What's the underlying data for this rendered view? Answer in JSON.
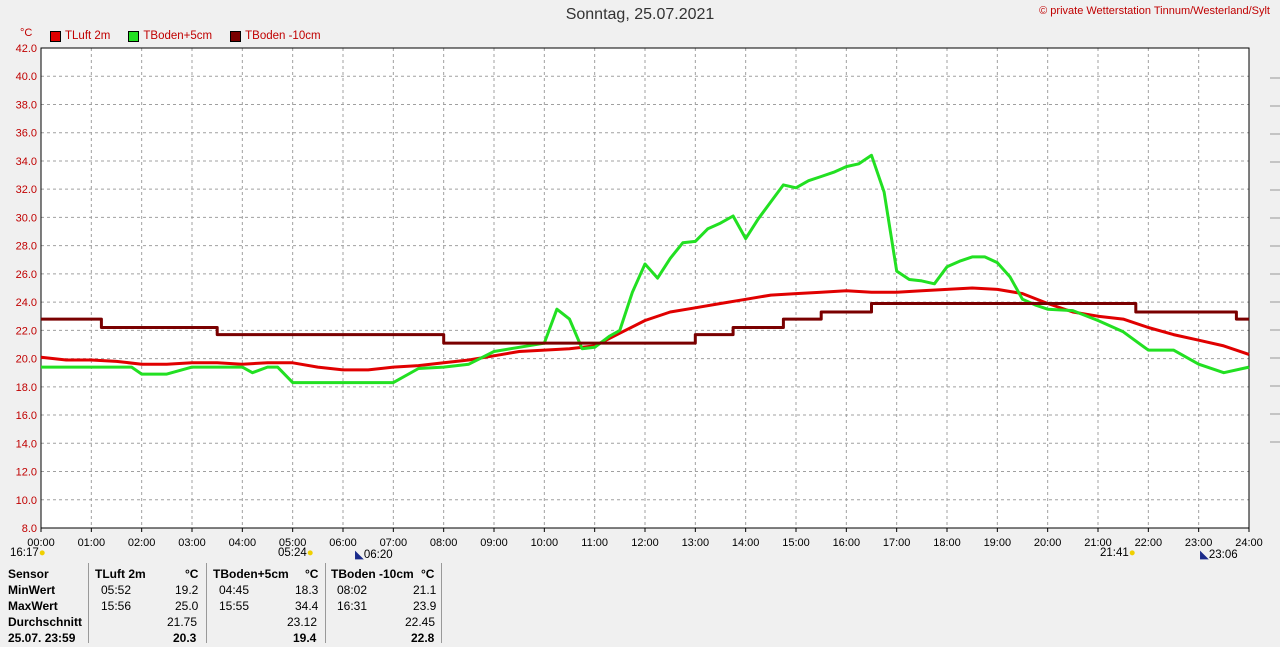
{
  "title": "Sonntag, 25.07.2021",
  "copyright": "© private Wetterstation Tinnum/Westerland/Sylt",
  "unit": "°C",
  "sun_events": [
    "16:17",
    "05:24",
    "06:20",
    "21:41",
    "23:06"
  ],
  "chart_data": {
    "type": "line",
    "ylim": [
      8,
      42
    ],
    "yticks": [
      "8.0",
      "10.0",
      "12.0",
      "14.0",
      "16.0",
      "18.0",
      "20.0",
      "22.0",
      "24.0",
      "26.0",
      "28.0",
      "30.0",
      "32.0",
      "34.0",
      "36.0",
      "38.0",
      "40.0",
      "42.0"
    ],
    "xticks": [
      "00:00",
      "01:00",
      "02:00",
      "03:00",
      "04:00",
      "05:00",
      "06:00",
      "07:00",
      "08:00",
      "09:00",
      "10:00",
      "11:00",
      "12:00",
      "13:00",
      "14:00",
      "15:00",
      "16:00",
      "17:00",
      "18:00",
      "19:00",
      "20:00",
      "21:00",
      "22:00",
      "23:00",
      "24:00"
    ],
    "xlim_hours": [
      0,
      24
    ],
    "grid": true,
    "series": [
      {
        "name": "TLuft 2m",
        "color": "#e00000",
        "x": [
          0,
          0.5,
          1,
          1.5,
          2,
          2.5,
          3,
          3.5,
          4,
          4.5,
          5,
          5.5,
          6,
          6.5,
          7,
          7.5,
          8,
          8.5,
          9,
          9.5,
          10,
          10.5,
          11,
          11.5,
          12,
          12.5,
          13,
          13.5,
          14,
          14.5,
          15,
          15.5,
          16,
          16.5,
          17,
          17.5,
          18,
          18.5,
          19,
          19.5,
          20,
          20.5,
          21,
          21.5,
          22,
          22.5,
          23,
          23.5,
          24
        ],
        "y": [
          20.1,
          19.9,
          19.9,
          19.8,
          19.6,
          19.6,
          19.7,
          19.7,
          19.6,
          19.7,
          19.7,
          19.4,
          19.2,
          19.2,
          19.4,
          19.5,
          19.7,
          19.9,
          20.2,
          20.5,
          20.6,
          20.7,
          20.9,
          21.8,
          22.7,
          23.3,
          23.6,
          23.9,
          24.2,
          24.5,
          24.6,
          24.7,
          24.8,
          24.7,
          24.7,
          24.8,
          24.9,
          25.0,
          24.9,
          24.6,
          23.9,
          23.3,
          23.0,
          22.8,
          22.2,
          21.7,
          21.3,
          20.9,
          20.3
        ]
      },
      {
        "name": "TBoden+5cm",
        "color": "#22e022",
        "x": [
          0,
          0.5,
          1,
          1.5,
          1.8,
          2,
          2.5,
          3,
          3.5,
          4,
          4.2,
          4.5,
          4.7,
          5,
          5.5,
          6,
          6.5,
          7,
          7.5,
          8,
          8.5,
          9,
          9.5,
          10,
          10.25,
          10.5,
          10.75,
          11,
          11.3,
          11.5,
          11.75,
          12,
          12.25,
          12.5,
          12.75,
          13,
          13.25,
          13.5,
          13.75,
          14,
          14.25,
          14.5,
          14.75,
          15,
          15.25,
          15.5,
          15.75,
          16,
          16.25,
          16.5,
          16.75,
          17,
          17.25,
          17.5,
          17.75,
          18,
          18.25,
          18.5,
          18.75,
          19,
          19.25,
          19.5,
          19.75,
          20,
          20.5,
          21,
          21.5,
          22,
          22.5,
          23,
          23.5,
          24
        ],
        "y": [
          19.4,
          19.4,
          19.4,
          19.4,
          19.4,
          18.9,
          18.9,
          19.4,
          19.4,
          19.4,
          19.0,
          19.4,
          19.4,
          18.3,
          18.3,
          18.3,
          18.3,
          18.3,
          19.3,
          19.4,
          19.6,
          20.5,
          20.8,
          21.1,
          23.5,
          22.8,
          20.7,
          20.8,
          21.6,
          22.0,
          24.7,
          26.7,
          25.7,
          27.1,
          28.2,
          28.3,
          29.2,
          29.6,
          30.1,
          28.5,
          29.9,
          31.1,
          32.3,
          32.1,
          32.6,
          32.9,
          33.2,
          33.6,
          33.8,
          34.4,
          31.8,
          26.2,
          25.6,
          25.5,
          25.3,
          26.5,
          26.9,
          27.2,
          27.2,
          26.8,
          25.8,
          24.2,
          23.8,
          23.5,
          23.4,
          22.7,
          21.9,
          20.6,
          20.6,
          19.6,
          19.0,
          19.4
        ]
      },
      {
        "name": "TBoden -10cm",
        "color": "#7a0000",
        "x": [
          0,
          1.2,
          1.2,
          3.5,
          3.5,
          8,
          8,
          13,
          13,
          13.75,
          13.75,
          14.75,
          14.75,
          15.5,
          15.5,
          16.5,
          16.5,
          17.75,
          17.75,
          21.75,
          21.75,
          23.75,
          23.75,
          24
        ],
        "y": [
          22.8,
          22.8,
          22.2,
          22.2,
          21.7,
          21.7,
          21.1,
          21.1,
          21.7,
          21.7,
          22.2,
          22.2,
          22.8,
          22.8,
          23.3,
          23.3,
          23.9,
          23.9,
          23.9,
          23.9,
          23.3,
          23.3,
          22.8,
          22.8
        ]
      }
    ]
  },
  "stats": {
    "headers": [
      "Sensor",
      "TLuft 2m",
      "°C",
      "TBoden+5cm",
      "°C",
      "TBoden -10cm",
      "°C"
    ],
    "rows": [
      {
        "label": "MinWert",
        "c1": [
          "05:52",
          "19.2"
        ],
        "c2": [
          "04:45",
          "18.3"
        ],
        "c3": [
          "08:02",
          "21.1"
        ]
      },
      {
        "label": "MaxWert",
        "c1": [
          "15:56",
          "25.0"
        ],
        "c2": [
          "15:55",
          "34.4"
        ],
        "c3": [
          "16:31",
          "23.9"
        ]
      },
      {
        "label": "Durchschnitt",
        "c1": [
          "",
          "21.75"
        ],
        "c2": [
          "",
          "23.12"
        ],
        "c3": [
          "",
          "22.45"
        ]
      },
      {
        "label": "25.07. 23:59",
        "c1": [
          "",
          "20.3"
        ],
        "c2": [
          "",
          "19.4"
        ],
        "c3": [
          "",
          "22.8"
        ]
      }
    ]
  }
}
